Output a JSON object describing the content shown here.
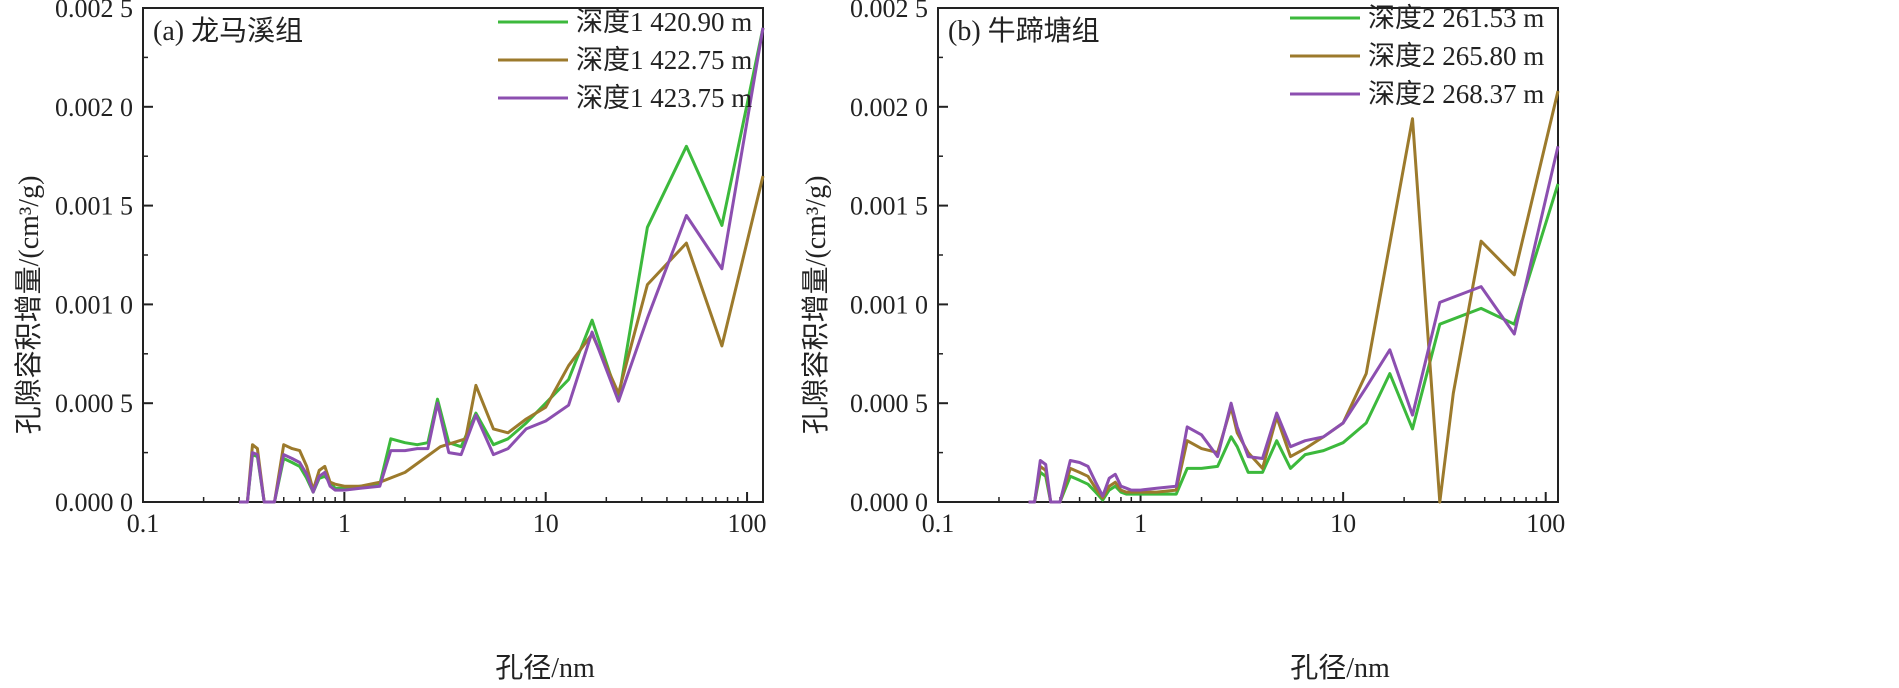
{
  "chart_data": [
    {
      "type": "line",
      "title": "(a) 龙马溪组",
      "xlabel": "孔径/nm",
      "ylabel": "孔隙容积增量/(cm³/g)",
      "xscale": "log",
      "xlim": [
        0.1,
        120
      ],
      "ylim": [
        0,
        0.0025
      ],
      "x_ticks": [
        {
          "value": 0.1,
          "label": "0.1"
        },
        {
          "value": 1,
          "label": "1"
        },
        {
          "value": 10,
          "label": "10"
        },
        {
          "value": 100,
          "label": "100"
        }
      ],
      "y_ticks": [
        {
          "value": 0,
          "label": "0.000 0"
        },
        {
          "value": 0.0005,
          "label": "0.000 5"
        },
        {
          "value": 0.001,
          "label": "0.001 0"
        },
        {
          "value": 0.0015,
          "label": "0.001 5"
        },
        {
          "value": 0.002,
          "label": "0.002 0"
        },
        {
          "value": 0.0025,
          "label": "0.002 5"
        }
      ],
      "grid": false,
      "legend_position": "top-right",
      "series": [
        {
          "name": "深度1 420.90 m",
          "color": "#3cb93c",
          "x": [
            0.3,
            0.33,
            0.35,
            0.37,
            0.4,
            0.45,
            0.5,
            0.55,
            0.6,
            0.65,
            0.7,
            0.75,
            0.8,
            0.85,
            0.9,
            1.0,
            1.2,
            1.5,
            1.7,
            2.0,
            2.3,
            2.6,
            2.9,
            3.3,
            3.8,
            4.5,
            5.5,
            6.5,
            8.0,
            10,
            13,
            17,
            23,
            32,
            50,
            75,
            120
          ],
          "y": [
            0.0,
            0.0,
            0.00024,
            0.00023,
            0.0,
            0.0,
            0.00022,
            0.0002,
            0.00018,
            0.00012,
            5e-05,
            0.00012,
            0.00013,
            0.0001,
            7e-05,
            7e-05,
            8e-05,
            9e-05,
            0.00032,
            0.0003,
            0.00029,
            0.0003,
            0.00052,
            0.0003,
            0.00028,
            0.00045,
            0.00029,
            0.00032,
            0.0004,
            0.0005,
            0.00062,
            0.00092,
            0.00052,
            0.00139,
            0.0018,
            0.0014,
            0.0024
          ]
        },
        {
          "name": "深度1 422.75 m",
          "color": "#9c7a2c",
          "x": [
            0.3,
            0.33,
            0.35,
            0.37,
            0.4,
            0.45,
            0.5,
            0.55,
            0.6,
            0.65,
            0.7,
            0.75,
            0.8,
            0.85,
            0.9,
            1.0,
            1.2,
            1.5,
            2.0,
            3.0,
            4.0,
            4.5,
            5.5,
            6.5,
            8.0,
            10,
            13,
            17,
            23,
            32,
            50,
            75,
            120
          ],
          "y": [
            0.0,
            0.0,
            0.00029,
            0.00027,
            0.0,
            0.0,
            0.00029,
            0.00027,
            0.00026,
            0.00018,
            6e-05,
            0.00016,
            0.00018,
            0.0001,
            9e-05,
            8e-05,
            8e-05,
            0.0001,
            0.00015,
            0.00028,
            0.00032,
            0.00059,
            0.00037,
            0.00035,
            0.00042,
            0.00048,
            0.00069,
            0.00085,
            0.00055,
            0.0011,
            0.00131,
            0.00079,
            0.00165
          ]
        },
        {
          "name": "深度1 423.75 m",
          "color": "#8c4fb0",
          "x": [
            0.3,
            0.33,
            0.35,
            0.37,
            0.4,
            0.45,
            0.5,
            0.55,
            0.6,
            0.65,
            0.7,
            0.75,
            0.8,
            0.85,
            0.9,
            1.0,
            1.2,
            1.5,
            1.7,
            2.0,
            2.3,
            2.6,
            2.9,
            3.3,
            3.8,
            4.5,
            5.5,
            6.5,
            8.0,
            10,
            13,
            17,
            23,
            32,
            50,
            75,
            120
          ],
          "y": [
            0.0,
            0.0,
            0.00025,
            0.00024,
            0.0,
            0.0,
            0.00024,
            0.00022,
            0.0002,
            0.00014,
            5e-05,
            0.00013,
            0.00015,
            8e-05,
            6e-05,
            6e-05,
            7e-05,
            8e-05,
            0.00026,
            0.00026,
            0.00027,
            0.00027,
            0.0005,
            0.00025,
            0.00024,
            0.00044,
            0.00024,
            0.00027,
            0.00037,
            0.00041,
            0.00049,
            0.00086,
            0.00051,
            0.00093,
            0.00145,
            0.00118,
            0.0024
          ]
        }
      ]
    },
    {
      "type": "line",
      "title": "(b) 牛蹄塘组",
      "xlabel": "孔径/nm",
      "ylabel": "孔隙容积增量/(cm³/g)",
      "xscale": "log",
      "xlim": [
        0.1,
        115
      ],
      "ylim": [
        0,
        0.0025
      ],
      "x_ticks": [
        {
          "value": 0.1,
          "label": "0.1"
        },
        {
          "value": 1,
          "label": "1"
        },
        {
          "value": 10,
          "label": "10"
        },
        {
          "value": 100,
          "label": "100"
        }
      ],
      "y_ticks": [
        {
          "value": 0,
          "label": "0.000 0"
        },
        {
          "value": 0.0005,
          "label": "0.000 5"
        },
        {
          "value": 0.001,
          "label": "0.001 0"
        },
        {
          "value": 0.0015,
          "label": "0.001 5"
        },
        {
          "value": 0.002,
          "label": "0.002 0"
        },
        {
          "value": 0.0025,
          "label": "0.002 5"
        }
      ],
      "grid": false,
      "legend_position": "top-right",
      "series": [
        {
          "name": "深度2 261.53 m",
          "color": "#3cb93c",
          "x": [
            0.28,
            0.3,
            0.32,
            0.34,
            0.36,
            0.4,
            0.45,
            0.5,
            0.55,
            0.6,
            0.65,
            0.7,
            0.75,
            0.8,
            0.85,
            0.9,
            1.0,
            1.2,
            1.5,
            1.7,
            2.0,
            2.4,
            2.8,
            3.0,
            3.4,
            4.0,
            4.7,
            5.5,
            6.5,
            8.0,
            10,
            13,
            17,
            22,
            30,
            48,
            70,
            115
          ],
          "y": [
            0.0,
            0.0,
            0.00015,
            0.00013,
            0.0,
            0.0,
            0.00013,
            0.00011,
            9e-05,
            5e-05,
            1e-05,
            6e-05,
            8e-05,
            5e-05,
            4e-05,
            4e-05,
            4e-05,
            4e-05,
            4e-05,
            0.00017,
            0.00017,
            0.00018,
            0.00033,
            0.00028,
            0.00015,
            0.00015,
            0.00031,
            0.00017,
            0.00024,
            0.00026,
            0.0003,
            0.0004,
            0.00065,
            0.00037,
            0.0009,
            0.00098,
            0.0009,
            0.00161
          ]
        },
        {
          "name": "深度2 265.80 m",
          "color": "#9c7a2c",
          "x": [
            0.28,
            0.3,
            0.32,
            0.34,
            0.36,
            0.4,
            0.45,
            0.5,
            0.55,
            0.6,
            0.65,
            0.7,
            0.75,
            0.8,
            0.85,
            0.9,
            1.0,
            1.2,
            1.5,
            1.7,
            2.0,
            2.4,
            2.8,
            3.0,
            3.4,
            4.0,
            4.7,
            5.5,
            6.5,
            8.0,
            10,
            13,
            22,
            30,
            35,
            48,
            70,
            115
          ],
          "y": [
            0.0,
            0.0,
            0.00018,
            0.00016,
            0.0,
            0.0,
            0.00017,
            0.00015,
            0.00013,
            7e-05,
            2e-05,
            8e-05,
            0.0001,
            6e-05,
            5e-05,
            5e-05,
            5e-05,
            5e-05,
            6e-05,
            0.00031,
            0.00027,
            0.00025,
            0.00048,
            0.00035,
            0.00025,
            0.00017,
            0.00043,
            0.00023,
            0.00027,
            0.00033,
            0.0004,
            0.00065,
            0.00194,
            0.0,
            0.00055,
            0.00132,
            0.00115,
            0.00208
          ]
        },
        {
          "name": "深度2 268.37 m",
          "color": "#8c4fb0",
          "x": [
            0.28,
            0.3,
            0.32,
            0.34,
            0.36,
            0.4,
            0.45,
            0.5,
            0.55,
            0.6,
            0.65,
            0.7,
            0.75,
            0.8,
            0.85,
            0.9,
            1.0,
            1.2,
            1.5,
            1.7,
            2.0,
            2.4,
            2.8,
            3.0,
            3.4,
            4.0,
            4.7,
            5.5,
            6.5,
            8.0,
            10,
            13,
            17,
            22,
            30,
            48,
            70,
            115
          ],
          "y": [
            0.0,
            0.0,
            0.00021,
            0.00019,
            0.0,
            0.0,
            0.00021,
            0.0002,
            0.00018,
            0.0001,
            3e-05,
            0.00012,
            0.00014,
            8e-05,
            7e-05,
            6e-05,
            6e-05,
            7e-05,
            8e-05,
            0.00038,
            0.00034,
            0.00023,
            0.0005,
            0.00038,
            0.00023,
            0.00022,
            0.00045,
            0.00028,
            0.00031,
            0.00033,
            0.0004,
            0.00058,
            0.00077,
            0.00044,
            0.00101,
            0.00109,
            0.00085,
            0.0018
          ]
        }
      ]
    }
  ]
}
